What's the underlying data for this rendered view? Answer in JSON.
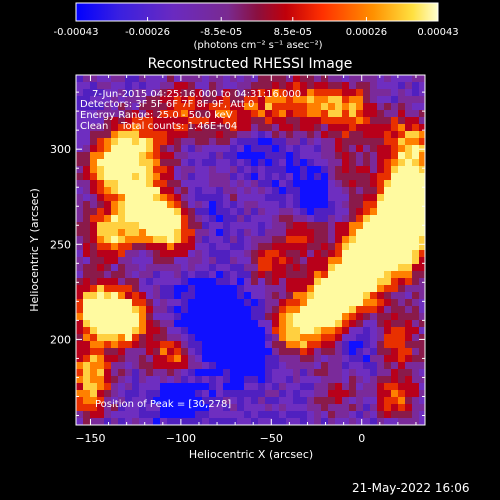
{
  "colorbar": {
    "ticks": [
      "-0.00043",
      "-0.00026",
      "-8.5e-05",
      "8.5e-05",
      "0.00026",
      "0.00043"
    ],
    "unit_label": "(photons cm⁻² s⁻¹ asec⁻²)",
    "range": [
      -0.00043,
      0.00043
    ]
  },
  "chart_data": {
    "type": "heatmap",
    "title": "Reconstructed RHESSI Image",
    "xlabel": "Heliocentric X (arcsec)",
    "ylabel": "Heliocentric Y (arcsec)",
    "xlim": [
      -158,
      35
    ],
    "ylim": [
      155,
      339
    ],
    "x_ticks": [
      -150,
      -100,
      -50,
      0
    ],
    "y_ticks": [
      200,
      250,
      300
    ],
    "annotations": [
      "7-Jun-2015 04:25:16.000 to 04:31:16.000",
      "Detectors: 3F 5F 6F 7F 8F 9F, Att 0",
      "Energy Range: 25.0 - 50.0 keV",
      "Clean    Total counts: 1.46E+04"
    ],
    "peak_label": "Position of Peak = [30,278]",
    "peak_position": [
      30,
      278
    ],
    "colormap": [
      "#1010ff",
      "#5020c0",
      "#6e2ec0",
      "#7a2a9a",
      "#8a1a4a",
      "#b8001a",
      "#e83000",
      "#ff8000",
      "#ffd040",
      "#fffaa0"
    ],
    "blobs": [
      {
        "x": 30,
        "y": 278,
        "sigma": 12,
        "amp": 1.0
      },
      {
        "x": 20,
        "y": 255,
        "sigma": 14,
        "amp": 0.85
      },
      {
        "x": 5,
        "y": 245,
        "sigma": 13,
        "amp": 0.75
      },
      {
        "x": -10,
        "y": 225,
        "sigma": 12,
        "amp": 0.75
      },
      {
        "x": -25,
        "y": 212,
        "sigma": 12,
        "amp": 0.6
      },
      {
        "x": -40,
        "y": 205,
        "sigma": 10,
        "amp": 0.45
      },
      {
        "x": 25,
        "y": 305,
        "sigma": 10,
        "amp": 0.55
      },
      {
        "x": -5,
        "y": 320,
        "sigma": 10,
        "amp": 0.5
      },
      {
        "x": -25,
        "y": 325,
        "sigma": 10,
        "amp": 0.45
      },
      {
        "x": -50,
        "y": 322,
        "sigma": 11,
        "amp": 0.5
      },
      {
        "x": -75,
        "y": 318,
        "sigma": 9,
        "amp": 0.4
      },
      {
        "x": -100,
        "y": 322,
        "sigma": 10,
        "amp": 0.45
      },
      {
        "x": -125,
        "y": 300,
        "sigma": 12,
        "amp": 0.7
      },
      {
        "x": -140,
        "y": 290,
        "sigma": 10,
        "amp": 0.55
      },
      {
        "x": -120,
        "y": 270,
        "sigma": 11,
        "amp": 0.75
      },
      {
        "x": -105,
        "y": 258,
        "sigma": 9,
        "amp": 0.7
      },
      {
        "x": -140,
        "y": 255,
        "sigma": 10,
        "amp": 0.6
      },
      {
        "x": -145,
        "y": 215,
        "sigma": 10,
        "amp": 0.95
      },
      {
        "x": -130,
        "y": 210,
        "sigma": 9,
        "amp": 0.8
      },
      {
        "x": -105,
        "y": 190,
        "sigma": 9,
        "amp": 0.5
      },
      {
        "x": -150,
        "y": 185,
        "sigma": 9,
        "amp": 0.55
      },
      {
        "x": -150,
        "y": 168,
        "sigma": 8,
        "amp": 0.45
      },
      {
        "x": -50,
        "y": 240,
        "sigma": 8,
        "amp": 0.45
      },
      {
        "x": -35,
        "y": 255,
        "sigma": 8,
        "amp": 0.4
      },
      {
        "x": -10,
        "y": 290,
        "sigma": 9,
        "amp": 0.35
      },
      {
        "x": 20,
        "y": 200,
        "sigma": 10,
        "amp": 0.45
      },
      {
        "x": 20,
        "y": 170,
        "sigma": 9,
        "amp": 0.45
      },
      {
        "x": -15,
        "y": 170,
        "sigma": 8,
        "amp": 0.3
      },
      {
        "x": -75,
        "y": 275,
        "sigma": 8,
        "amp": 0.3
      },
      {
        "x": -55,
        "y": 300,
        "sigma": 8,
        "amp": 0.25
      },
      {
        "x": -80,
        "y": 210,
        "sigma": 12,
        "amp": -0.55
      },
      {
        "x": -65,
        "y": 195,
        "sigma": 10,
        "amp": -0.55
      },
      {
        "x": -55,
        "y": 300,
        "sigma": 9,
        "amp": -0.45
      },
      {
        "x": -25,
        "y": 280,
        "sigma": 10,
        "amp": -0.3
      },
      {
        "x": 0,
        "y": 200,
        "sigma": 8,
        "amp": -0.3
      },
      {
        "x": -80,
        "y": 270,
        "sigma": 8,
        "amp": -0.3
      },
      {
        "x": -100,
        "y": 170,
        "sigma": 9,
        "amp": -0.35
      }
    ]
  },
  "footer": {
    "timestamp": "21-May-2022 16:06"
  }
}
